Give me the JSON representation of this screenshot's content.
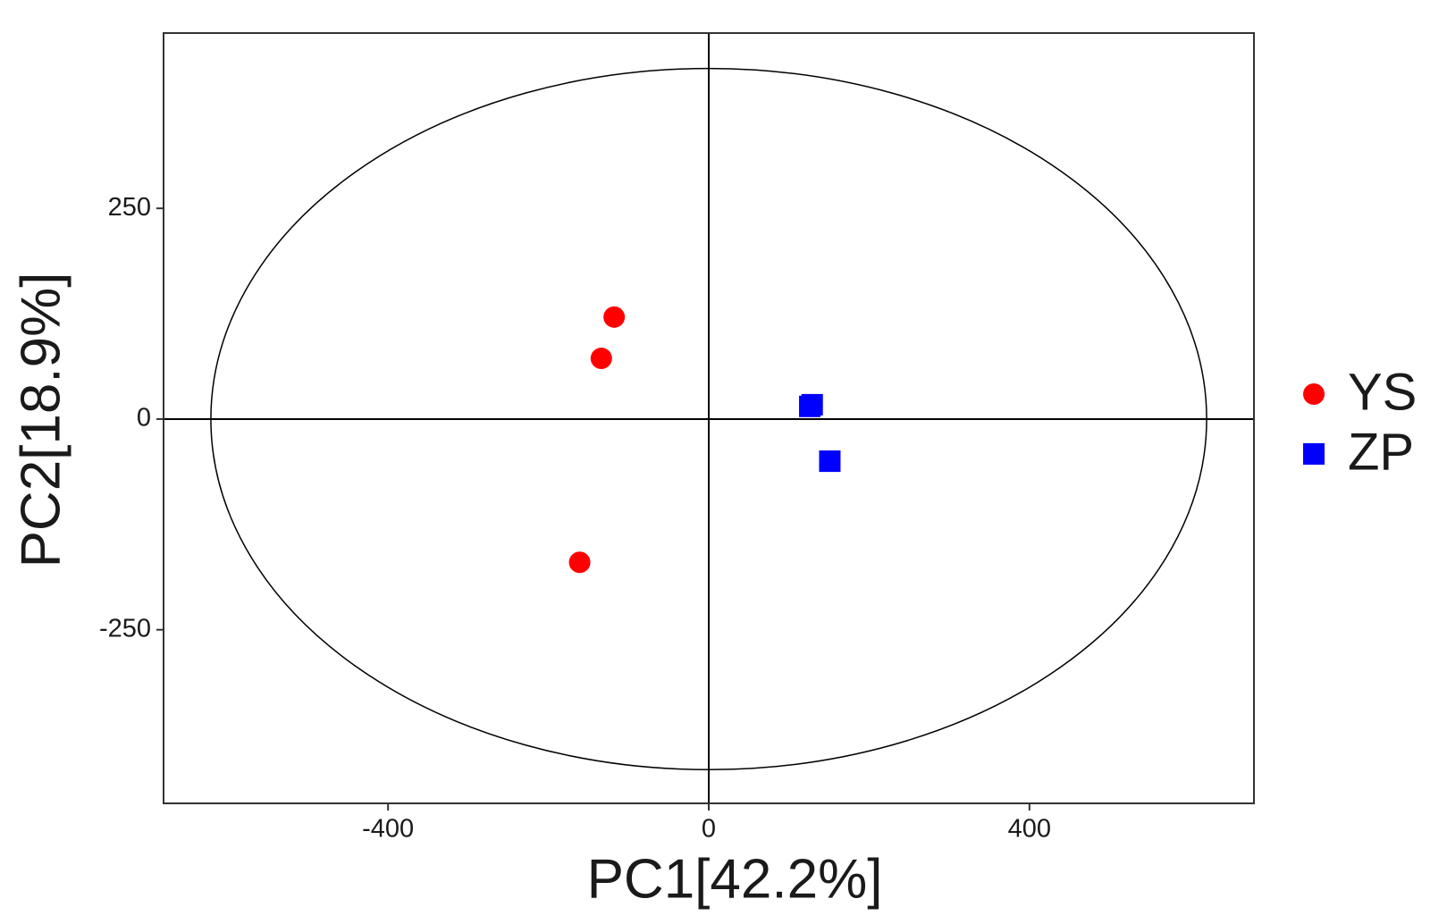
{
  "chart_data": {
    "type": "scatter",
    "x_label": "PC1[42.2%]",
    "y_label": "PC2[18.9%]",
    "xlim": [
      -680,
      680
    ],
    "ylim": [
      -456,
      458
    ],
    "xticks": [
      -400,
      0,
      400
    ],
    "yticks": [
      -250,
      0,
      250
    ],
    "grid": false,
    "reference_lines": {
      "x": 0,
      "y": 0
    },
    "ellipse": {
      "cx": 0,
      "cy": 0,
      "rx": 621,
      "ry": 416
    },
    "legend_position": "right",
    "series": [
      {
        "name": "YS",
        "color": "#ff0000",
        "marker": "circle",
        "x": [
          -118,
          -134,
          -161
        ],
        "values": [
          121,
          72,
          -170
        ]
      },
      {
        "name": "ZP",
        "color": "#0000ff",
        "marker": "square",
        "x": [
          129,
          126,
          151
        ],
        "values": [
          17,
          15,
          -50
        ]
      }
    ]
  }
}
